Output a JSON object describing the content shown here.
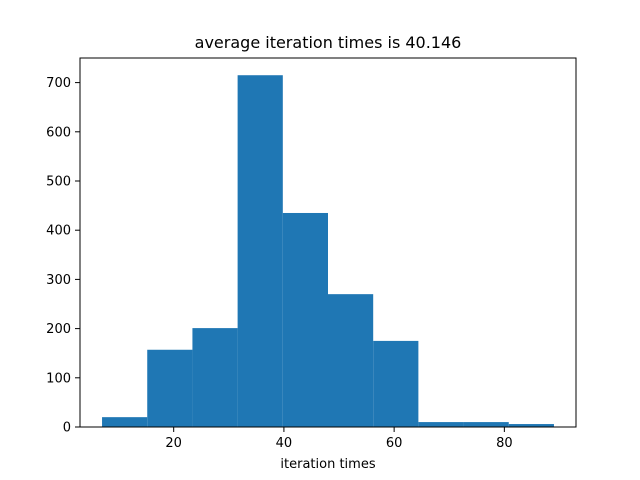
{
  "chart_data": {
    "type": "bar",
    "title": "average iteration times is 40.146",
    "xlabel": "iteration times",
    "ylabel": "",
    "xlim": [
      3,
      93
    ],
    "ylim": [
      0,
      750
    ],
    "xticks": [
      20,
      40,
      60,
      80
    ],
    "yticks": [
      0,
      100,
      200,
      300,
      400,
      500,
      600,
      700
    ],
    "bins": [
      {
        "start": 7.0,
        "end": 15.2,
        "count": 20
      },
      {
        "start": 15.2,
        "end": 23.4,
        "count": 157
      },
      {
        "start": 23.4,
        "end": 31.6,
        "count": 201
      },
      {
        "start": 31.6,
        "end": 39.8,
        "count": 715
      },
      {
        "start": 39.8,
        "end": 48.0,
        "count": 435
      },
      {
        "start": 48.0,
        "end": 56.2,
        "count": 270
      },
      {
        "start": 56.2,
        "end": 64.4,
        "count": 175
      },
      {
        "start": 64.4,
        "end": 72.6,
        "count": 10
      },
      {
        "start": 72.6,
        "end": 80.8,
        "count": 10
      },
      {
        "start": 80.8,
        "end": 89.0,
        "count": 6
      }
    ],
    "bar_color": "#1f77b4",
    "grid": false,
    "legend": "none"
  }
}
